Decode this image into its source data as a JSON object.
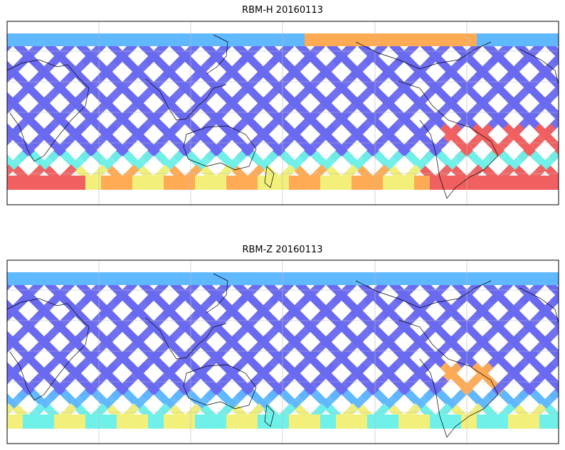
{
  "panels": [
    {
      "title": "RBM-H 20160113"
    },
    {
      "title": "RBM-Z 20160113"
    }
  ],
  "colors": {
    "frame": "#000000",
    "grid": "#bbbbbb",
    "coast": "#000000",
    "track_low": "#6a6af0",
    "track_mid": "#60b8ff",
    "track_cyan": "#6ff0e8",
    "track_yellow": "#f2f07a",
    "track_orange": "#ffaa55",
    "track_high": "#f06060",
    "track_max": "#b86060"
  }
}
